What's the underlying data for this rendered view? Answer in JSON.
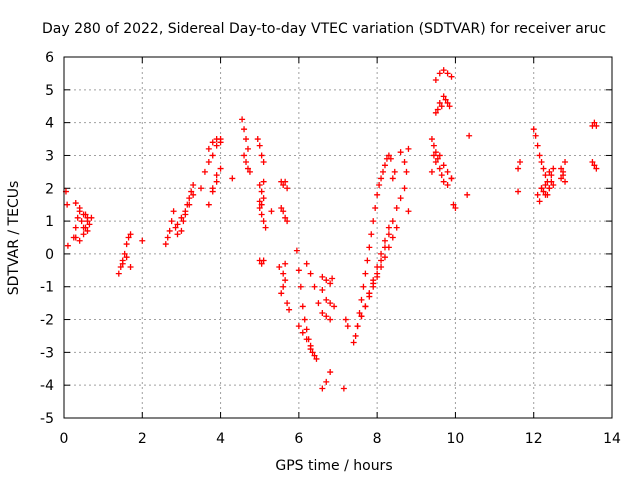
{
  "chart_data": {
    "type": "scatter",
    "title": "Day 280 of 2022, Sidereal Day-to-day VTEC variation (SDTVAR) for receiver aruc",
    "xlabel": "GPS time / hours",
    "ylabel": "SDTVAR / TECUs",
    "xlim": [
      0,
      14
    ],
    "ylim": [
      -5,
      6
    ],
    "xticks": [
      0,
      2,
      4,
      6,
      8,
      10,
      12,
      14
    ],
    "yticks": [
      -5,
      -4,
      -3,
      -2,
      -1,
      0,
      1,
      2,
      3,
      4,
      5,
      6
    ],
    "xtick_labels": [
      "0",
      "2",
      "4",
      "6",
      "8",
      "10",
      "12",
      "14"
    ],
    "ytick_labels": [
      "-5",
      "-4",
      "-3",
      "-2",
      "-1",
      "0",
      "1",
      "2",
      "3",
      "4",
      "5",
      "6"
    ],
    "grid": true,
    "marker": "+",
    "series": [
      {
        "name": "SDTVAR",
        "color": "#ff0000",
        "x": [
          0.05,
          0.08,
          0.1,
          0.25,
          0.3,
          0.35,
          0.4,
          0.45,
          0.5,
          0.55,
          0.6,
          0.7,
          0.3,
          0.4,
          0.5,
          0.6,
          0.65,
          0.3,
          0.4,
          0.5,
          0.55,
          0.6,
          1.4,
          1.45,
          1.5,
          1.55,
          1.6,
          1.65,
          1.7,
          1.5,
          1.6,
          1.7,
          2.0,
          2.6,
          2.65,
          2.7,
          2.75,
          2.8,
          2.85,
          2.9,
          3.0,
          3.05,
          3.1,
          3.15,
          3.2,
          3.25,
          3.3,
          2.9,
          3.0,
          3.1,
          3.2,
          3.3,
          3.5,
          3.6,
          3.7,
          3.8,
          3.9,
          4.0,
          3.7,
          3.8,
          3.9,
          4.0,
          3.7,
          3.8,
          3.9,
          3.8,
          3.9,
          4.0,
          4.3,
          4.55,
          4.6,
          4.65,
          4.7,
          4.6,
          4.65,
          4.7,
          4.75,
          4.95,
          5.0,
          5.05,
          5.1,
          5.0,
          5.05,
          5.1,
          5.0,
          5.05,
          5.1,
          5.15,
          5.0,
          5.05,
          5.1,
          5.0,
          5.05,
          5.1,
          5.3,
          5.55,
          5.6,
          5.65,
          5.7,
          5.55,
          5.6,
          5.65,
          5.7,
          5.5,
          5.6,
          5.65,
          5.55,
          5.6,
          5.65,
          5.7,
          5.75,
          5.95,
          6.0,
          6.05,
          6.1,
          6.15,
          6.2,
          6.25,
          6.3,
          6.35,
          6.4,
          6.45,
          6.0,
          6.1,
          6.2,
          6.3,
          6.2,
          6.3,
          6.4,
          6.5,
          6.6,
          6.7,
          6.8,
          6.6,
          6.7,
          6.8,
          6.85,
          6.6,
          6.7,
          6.8,
          6.7,
          6.8,
          6.9,
          6.6,
          7.15,
          7.2,
          7.25,
          7.4,
          7.45,
          7.5,
          7.55,
          7.6,
          7.65,
          7.7,
          7.75,
          7.8,
          7.85,
          7.9,
          7.95,
          8.0,
          8.05,
          8.1,
          8.15,
          8.2,
          8.25,
          8.3,
          8.35,
          8.4,
          8.45,
          7.5,
          7.6,
          7.7,
          7.8,
          7.9,
          8.0,
          8.1,
          8.2,
          8.3,
          7.6,
          7.7,
          7.8,
          7.9,
          8.0,
          8.1,
          8.2,
          8.3,
          8.4,
          8.5,
          7.8,
          7.9,
          8.0,
          8.1,
          8.2,
          8.3,
          8.4,
          8.5,
          8.6,
          8.7,
          8.75,
          8.8,
          8.6,
          8.7,
          8.8,
          9.4,
          9.45,
          9.5,
          9.55,
          9.6,
          9.65,
          9.7,
          9.75,
          9.8,
          9.85,
          9.5,
          9.6,
          9.7,
          9.8,
          9.9,
          9.4,
          9.5,
          9.6,
          9.7,
          9.8,
          9.9,
          9.45,
          9.5,
          9.55,
          9.6,
          9.65,
          9.7,
          9.8,
          9.9,
          9.95,
          10.0,
          10.3,
          10.35,
          11.6,
          11.65,
          11.6,
          12.0,
          12.05,
          12.1,
          12.15,
          12.2,
          12.25,
          12.3,
          12.35,
          12.4,
          12.45,
          12.1,
          12.15,
          12.2,
          12.25,
          12.3,
          12.35,
          12.4,
          12.45,
          12.5,
          12.2,
          12.3,
          12.4,
          12.5,
          12.7,
          12.75,
          12.8,
          12.7,
          12.75,
          12.8,
          13.5,
          13.55,
          13.6,
          13.5,
          13.55,
          13.6
        ],
        "y": [
          1.9,
          1.5,
          0.25,
          0.5,
          0.8,
          1.1,
          1.3,
          1.0,
          0.8,
          1.2,
          0.7,
          1.1,
          1.55,
          1.4,
          1.2,
          1.0,
          0.9,
          0.5,
          0.4,
          0.6,
          0.8,
          1.1,
          -0.6,
          -0.4,
          -0.2,
          0.0,
          0.3,
          0.5,
          0.6,
          -0.3,
          -0.1,
          -0.4,
          0.4,
          0.3,
          0.5,
          0.7,
          1.0,
          1.3,
          0.8,
          0.6,
          0.7,
          1.0,
          1.2,
          1.5,
          1.7,
          1.9,
          2.1,
          0.9,
          1.1,
          1.3,
          1.5,
          1.8,
          2.0,
          2.5,
          2.8,
          3.0,
          3.3,
          3.5,
          3.2,
          3.4,
          3.5,
          3.4,
          1.5,
          1.9,
          2.2,
          2.0,
          2.4,
          2.6,
          2.3,
          4.1,
          3.8,
          3.5,
          3.2,
          3.0,
          2.8,
          2.6,
          2.5,
          3.5,
          3.3,
          3.0,
          2.8,
          2.1,
          1.9,
          2.2,
          1.4,
          1.2,
          1.0,
          0.8,
          -0.2,
          -0.3,
          -0.2,
          1.6,
          1.5,
          1.7,
          1.3,
          2.2,
          2.1,
          2.2,
          2.0,
          1.4,
          1.3,
          1.1,
          1.0,
          -0.4,
          -0.6,
          -0.3,
          -1.2,
          -1.0,
          -0.8,
          -1.5,
          -1.7,
          0.1,
          -0.5,
          -1.0,
          -1.6,
          -2.0,
          -2.3,
          -2.6,
          -2.8,
          -3.0,
          -3.1,
          -3.2,
          -2.2,
          -2.4,
          -2.6,
          -2.9,
          -0.3,
          -0.6,
          -1.0,
          -1.5,
          -4.1,
          -3.9,
          -3.6,
          -0.7,
          -0.8,
          -0.9,
          -0.75,
          -1.8,
          -1.9,
          -2.0,
          -1.4,
          -1.5,
          -1.6,
          -1.1,
          -4.1,
          -2.0,
          -2.2,
          -2.7,
          -2.5,
          -2.2,
          -1.8,
          -1.4,
          -1.0,
          -0.6,
          -0.2,
          0.2,
          0.6,
          1.0,
          1.4,
          1.8,
          2.1,
          2.3,
          2.5,
          2.7,
          2.9,
          3.0,
          2.9,
          2.3,
          2.5,
          -2.2,
          -1.9,
          -1.6,
          -1.2,
          -0.8,
          -0.4,
          0.0,
          0.4,
          0.8,
          -1.9,
          -1.6,
          -1.3,
          -1.0,
          -0.7,
          -0.4,
          -0.1,
          0.2,
          0.5,
          0.8,
          -1.2,
          -0.9,
          -0.6,
          -0.2,
          0.2,
          0.6,
          1.0,
          1.4,
          3.1,
          2.8,
          2.5,
          1.3,
          1.7,
          2.0,
          3.2,
          3.5,
          3.3,
          4.3,
          4.4,
          4.6,
          4.5,
          4.8,
          4.7,
          4.6,
          4.5,
          5.3,
          5.5,
          5.6,
          5.5,
          5.4,
          2.5,
          2.8,
          3.0,
          2.7,
          2.5,
          2.3,
          3.0,
          3.1,
          2.9,
          2.6,
          2.4,
          2.2,
          2.1,
          2.3,
          1.5,
          1.4,
          1.8,
          3.6,
          1.9,
          2.8,
          2.6,
          3.8,
          3.6,
          3.3,
          3.0,
          2.8,
          2.6,
          2.4,
          2.2,
          2.5,
          2.4,
          1.8,
          1.6,
          2.0,
          1.9,
          2.1,
          1.8,
          2.0,
          2.2,
          2.6,
          2.0,
          1.8,
          2.0,
          2.1,
          2.3,
          2.5,
          2.8,
          2.6,
          2.4,
          2.2,
          3.9,
          4.0,
          3.9,
          2.8,
          2.7,
          2.6
        ]
      }
    ]
  }
}
